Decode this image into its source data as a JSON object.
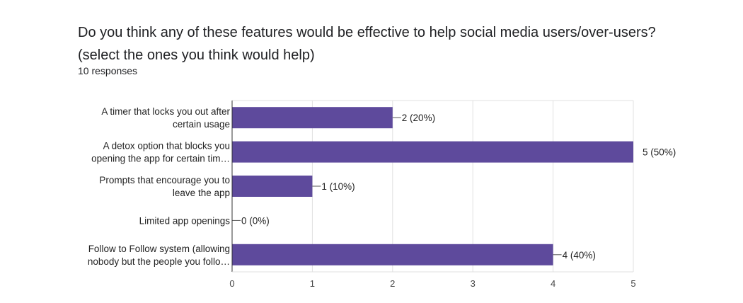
{
  "question": {
    "line1": "Do you think any of these features would be effective to help social media users/over-users?",
    "line2": "(select the ones you think would help)"
  },
  "responses_text": "10 responses",
  "colors": {
    "bar": "#5e4a9c",
    "grid": "#e0e0e0",
    "axis": "#333333"
  },
  "chart_data": {
    "type": "bar",
    "orientation": "horizontal",
    "title": "Do you think any of these features would be effective to help social media users/over-users? (select the ones you think would help)",
    "categories": [
      [
        "A timer that locks you out after",
        "certain usage"
      ],
      [
        "A detox option that blocks you",
        "opening the app for certain tim…"
      ],
      [
        "Prompts that encourage you to",
        "leave the app"
      ],
      [
        "Limited app openings"
      ],
      [
        "Follow to Follow system (allowing",
        "nobody but the people you follo…"
      ]
    ],
    "values": [
      2,
      5,
      1,
      0,
      4
    ],
    "data_labels": [
      "2 (20%)",
      "5 (50%)",
      "1 (10%)",
      "0 (0%)",
      "4 (40%)"
    ],
    "xlim": [
      0,
      5
    ],
    "xticks": [
      "0",
      "1",
      "2",
      "3",
      "4",
      "5"
    ],
    "grid": true
  }
}
